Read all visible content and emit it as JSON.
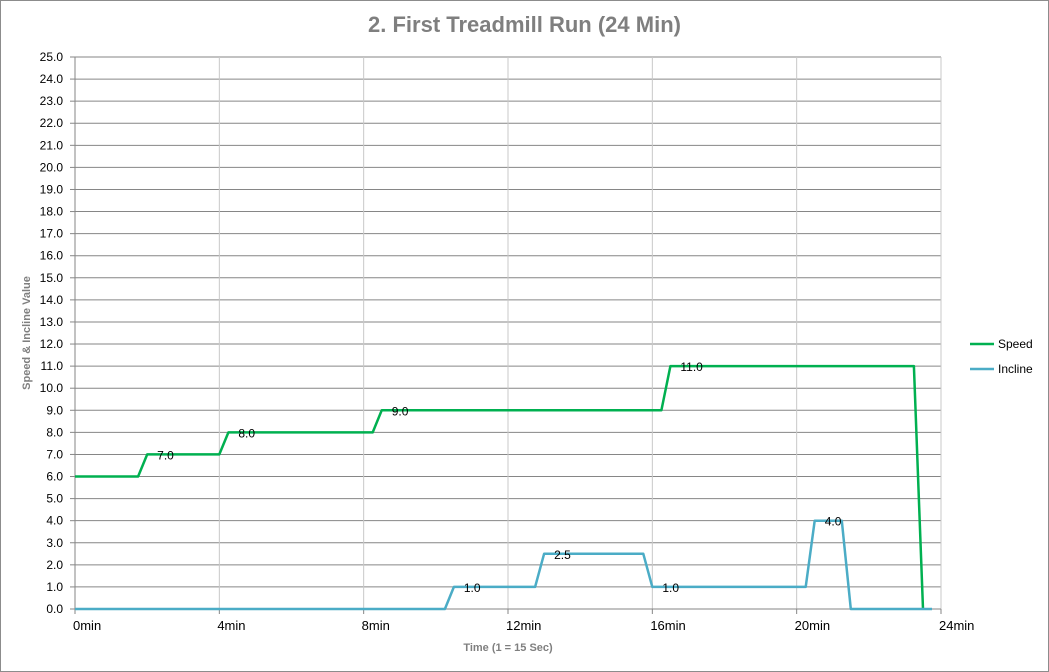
{
  "chart_data": {
    "type": "line",
    "title": "2. First Treadmill Run (24 Min)",
    "xlabel": "Time  (1 = 15 Sec)",
    "ylabel": "Speed  &  Incline Value",
    "xlim": [
      0,
      96
    ],
    "ylim": [
      0,
      25
    ],
    "y_step": 1,
    "y_ticks": [
      "0.0",
      "1.0",
      "2.0",
      "3.0",
      "4.0",
      "5.0",
      "6.0",
      "7.0",
      "8.0",
      "9.0",
      "10.0",
      "11.0",
      "12.0",
      "13.0",
      "14.0",
      "15.0",
      "16.0",
      "17.0",
      "18.0",
      "19.0",
      "20.0",
      "21.0",
      "22.0",
      "23.0",
      "24.0",
      "25.0"
    ],
    "x_ticks": [
      {
        "x": 0,
        "label": "0min"
      },
      {
        "x": 16,
        "label": "4min"
      },
      {
        "x": 32,
        "label": "8min"
      },
      {
        "x": 48,
        "label": "12min"
      },
      {
        "x": 64,
        "label": "16min"
      },
      {
        "x": 80,
        "label": "20min"
      },
      {
        "x": 96,
        "label": "24min"
      }
    ],
    "grid": true,
    "legend_position": "right",
    "series": [
      {
        "name": "Speed",
        "color": "#00b050",
        "points": [
          [
            0,
            6
          ],
          [
            7,
            6
          ],
          [
            8,
            7
          ],
          [
            16,
            7
          ],
          [
            17,
            8
          ],
          [
            33,
            8
          ],
          [
            34,
            9
          ],
          [
            65,
            9
          ],
          [
            66,
            11
          ],
          [
            93,
            11
          ],
          [
            94,
            0
          ]
        ],
        "labels": [
          {
            "x": 8,
            "y": 7,
            "text": "7.0"
          },
          {
            "x": 17,
            "y": 8,
            "text": "8.0"
          },
          {
            "x": 34,
            "y": 9,
            "text": "9.0"
          },
          {
            "x": 66,
            "y": 11,
            "text": "11.0"
          }
        ]
      },
      {
        "name": "Incline",
        "color": "#4bacc6",
        "points": [
          [
            0,
            0
          ],
          [
            41,
            0
          ],
          [
            42,
            1
          ],
          [
            51,
            1
          ],
          [
            52,
            2.5
          ],
          [
            63,
            2.5
          ],
          [
            64,
            1
          ],
          [
            81,
            1
          ],
          [
            82,
            4
          ],
          [
            85,
            4
          ],
          [
            86,
            0
          ],
          [
            95,
            0
          ]
        ],
        "labels": [
          {
            "x": 42,
            "y": 1,
            "text": "1.0"
          },
          {
            "x": 52,
            "y": 2.5,
            "text": "2.5"
          },
          {
            "x": 64,
            "y": 1,
            "text": "1.0"
          },
          {
            "x": 82,
            "y": 4,
            "text": "4.0"
          }
        ]
      }
    ]
  }
}
